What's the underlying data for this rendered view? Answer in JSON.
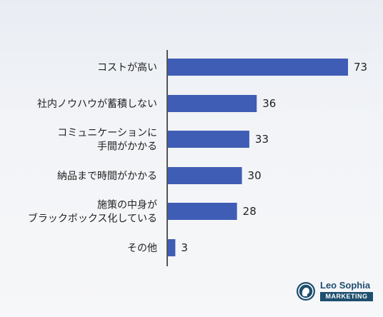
{
  "chart_data": {
    "type": "bar",
    "orientation": "horizontal",
    "categories": [
      [
        "コストが高い"
      ],
      [
        "社内ノウハウが蓄積しない"
      ],
      [
        "コミュニケーションに",
        "手間がかかる"
      ],
      [
        "納品まで時間がかかる"
      ],
      [
        "施策の中身が",
        "ブラックボックス化している"
      ],
      [
        "その他"
      ]
    ],
    "values": [
      73,
      36,
      33,
      30,
      28,
      3
    ],
    "xlim": [
      0,
      73
    ],
    "bar_color": "#3f5db5",
    "grid": false
  },
  "brand": {
    "name": "Leo Sophia",
    "sub": "MARKETING",
    "color": "#1e4f6e"
  }
}
